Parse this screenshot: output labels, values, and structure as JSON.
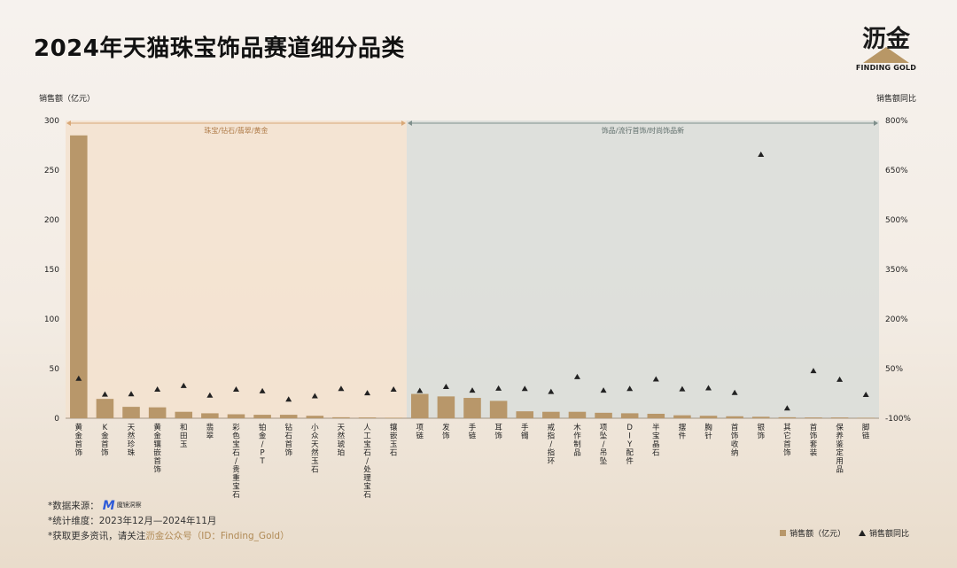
{
  "title": "2024年天猫珠宝饰品赛道细分品类",
  "logo": {
    "cn": "沥金",
    "en": "FINDING GOLD"
  },
  "colors": {
    "bar": "#b8976a",
    "marker": "#222222",
    "region1": "#f3e2cf",
    "region2": "#d9ddd9",
    "arrow1": "#d9a877",
    "arrow2": "#7f8f8c"
  },
  "chart_data": {
    "type": "bar",
    "ylabel": "销售额（亿元）",
    "y2label": "销售额同比",
    "ylim": [
      0,
      300
    ],
    "y2lim": [
      -100,
      800
    ],
    "yticks": [
      0,
      50,
      100,
      150,
      200,
      250,
      300
    ],
    "y2ticks": [
      "-100%",
      "50%",
      "200%",
      "350%",
      "500%",
      "650%",
      "800%"
    ],
    "groups": [
      {
        "label": "珠宝/钻石/翡翠/黄金",
        "from": 0,
        "to": 12
      },
      {
        "label": "饰品/流行首饰/时尚饰品新",
        "from": 13,
        "to": 30
      }
    ],
    "categories": [
      "黄金首饰",
      "K金首饰",
      "天然珍珠",
      "黄金镶嵌首饰",
      "和田玉",
      "翡翠",
      "彩色宝石/贵重宝石",
      "铂金/PT",
      "钻石首饰",
      "小众天然玉石",
      "天然琥珀",
      "人工宝石/处理宝石",
      "镶嵌玉石",
      "项链",
      "发饰",
      "手链",
      "耳饰",
      "手镯",
      "戒指/指环",
      "木作制品",
      "项坠/吊坠",
      "DIY配件",
      "半宝晶石",
      "摆件",
      "胸针",
      "首饰收纳",
      "银饰",
      "其它首饰",
      "首饰套装",
      "保养鉴定用品",
      "脚链"
    ],
    "series": [
      {
        "name": "销售额（亿元）",
        "type": "bar",
        "axis": "left",
        "values": [
          285,
          19.5,
          11.5,
          11,
          6.5,
          5,
          4,
          3.5,
          3.5,
          2.5,
          1,
          0.8,
          0.5,
          24.5,
          22,
          20.5,
          17.5,
          7,
          6.5,
          6.5,
          5.5,
          5,
          4.5,
          3,
          2.5,
          2,
          1.5,
          1,
          0.8,
          0.8,
          0.5
        ]
      },
      {
        "name": "销售额同比",
        "type": "scatter",
        "axis": "right",
        "values": [
          20,
          -28,
          -27,
          -13,
          -2,
          -31,
          -13,
          -18,
          -43,
          -33,
          -11,
          -24,
          -13,
          -17,
          -5,
          -16,
          -10,
          -11,
          -20,
          25,
          -16,
          -11,
          18,
          -12,
          -9,
          -23,
          697,
          -70,
          43,
          17,
          -29
        ]
      }
    ]
  },
  "footer": {
    "source_label": "*数据来源：",
    "source_logo_text": "魔镜洞察",
    "period": "*统计维度：2023年12月—2024年11月",
    "more_prefix": "*获取更多资讯，请关注",
    "more_highlight": "沥金公众号（ID：Finding_Gold）"
  }
}
